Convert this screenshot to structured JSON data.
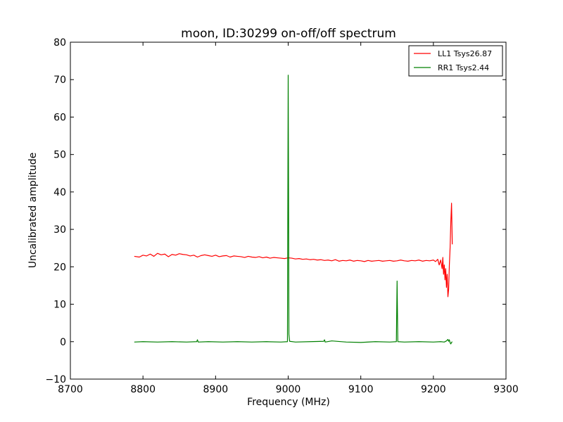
{
  "chart_data": {
    "type": "line",
    "title": "moon, ID:30299 on-off/off spectrum",
    "xlabel": "Frequency (MHz)",
    "ylabel": "Uncalibrated amplitude",
    "xlim": [
      8700,
      9300
    ],
    "ylim": [
      -10,
      80
    ],
    "xticks": [
      8700,
      8800,
      8900,
      9000,
      9100,
      9200,
      9300
    ],
    "yticks": [
      -10,
      0,
      10,
      20,
      30,
      40,
      50,
      60,
      70,
      80
    ],
    "xtick_labels": [
      "8700",
      "8800",
      "8900",
      "9000",
      "9100",
      "9200",
      "9300"
    ],
    "ytick_labels": [
      "−10",
      "0",
      "10",
      "20",
      "30",
      "40",
      "50",
      "60",
      "70",
      "80"
    ],
    "grid": false,
    "legend_position": "top-right",
    "series": [
      {
        "name": "LL1 Tsys26.87",
        "color": "#ff0000",
        "x": [
          8788,
          8795,
          8800,
          8805,
          8810,
          8815,
          8820,
          8825,
          8830,
          8835,
          8840,
          8845,
          8850,
          8855,
          8860,
          8865,
          8870,
          8875,
          8880,
          8885,
          8890,
          8895,
          8900,
          8905,
          8910,
          8915,
          8920,
          8925,
          8930,
          8935,
          8940,
          8945,
          8950,
          8955,
          8960,
          8965,
          8970,
          8975,
          8980,
          8985,
          8990,
          8995,
          9000,
          9005,
          9010,
          9015,
          9020,
          9025,
          9030,
          9035,
          9040,
          9045,
          9050,
          9055,
          9060,
          9065,
          9070,
          9075,
          9080,
          9085,
          9090,
          9095,
          9100,
          9105,
          9110,
          9115,
          9120,
          9125,
          9130,
          9135,
          9140,
          9145,
          9150,
          9155,
          9160,
          9165,
          9170,
          9175,
          9180,
          9185,
          9190,
          9195,
          9200,
          9203,
          9206,
          9208,
          9210,
          9212,
          9213,
          9214,
          9215,
          9216,
          9217,
          9218,
          9219,
          9220,
          9221,
          9222,
          9223,
          9224,
          9225,
          9226
        ],
        "y": [
          22.8,
          22.6,
          23.1,
          22.9,
          23.4,
          22.8,
          23.6,
          23.2,
          23.4,
          22.7,
          23.3,
          23.1,
          23.5,
          23.3,
          23.2,
          22.9,
          23.1,
          22.6,
          23.0,
          23.2,
          23.0,
          22.8,
          23.1,
          22.7,
          22.9,
          23.0,
          22.6,
          22.9,
          22.8,
          22.7,
          22.5,
          22.8,
          22.6,
          22.5,
          22.7,
          22.4,
          22.6,
          22.3,
          22.5,
          22.4,
          22.3,
          22.2,
          22.4,
          22.3,
          22.1,
          22.2,
          22.0,
          22.1,
          21.9,
          22.0,
          21.8,
          21.9,
          21.7,
          21.8,
          21.6,
          21.9,
          21.5,
          21.7,
          21.6,
          21.8,
          21.5,
          21.7,
          21.6,
          21.4,
          21.7,
          21.5,
          21.6,
          21.7,
          21.5,
          21.6,
          21.7,
          21.5,
          21.6,
          21.8,
          21.6,
          21.5,
          21.7,
          21.6,
          21.8,
          21.5,
          21.7,
          21.6,
          21.8,
          21.4,
          22.0,
          20.5,
          21.8,
          19.5,
          22.5,
          18.0,
          20.5,
          16.5,
          19.5,
          14.5,
          18.0,
          12.0,
          14.0,
          20.5,
          25.0,
          32.0,
          37.0,
          26.0
        ]
      },
      {
        "name": "RR1 Tsys2.44",
        "color": "#008000",
        "x": [
          8788,
          8800,
          8820,
          8840,
          8860,
          8874,
          8875,
          8876,
          8890,
          8910,
          8930,
          8950,
          8970,
          8990,
          8999,
          9000,
          9000.5,
          9001,
          9002,
          9010,
          9030,
          9049,
          9050,
          9051,
          9060,
          9080,
          9100,
          9120,
          9140,
          9149,
          9150,
          9151,
          9160,
          9180,
          9200,
          9210,
          9215,
          9218,
          9220,
          9221,
          9222,
          9223,
          9224,
          9225,
          9226
        ],
        "y": [
          -0.1,
          0.0,
          -0.1,
          0.0,
          -0.1,
          0.0,
          0.5,
          -0.1,
          0.0,
          -0.1,
          0.0,
          -0.1,
          0.0,
          -0.1,
          0.0,
          71.2,
          40.0,
          2.0,
          0.1,
          -0.1,
          0.0,
          0.1,
          0.5,
          -0.1,
          0.2,
          -0.1,
          -0.2,
          0.0,
          -0.1,
          0.0,
          16.2,
          0.0,
          -0.1,
          0.0,
          -0.1,
          0.0,
          -0.1,
          0.2,
          0.6,
          0.1,
          0.5,
          -0.3,
          -0.6,
          -0.2,
          0.0
        ]
      }
    ]
  }
}
